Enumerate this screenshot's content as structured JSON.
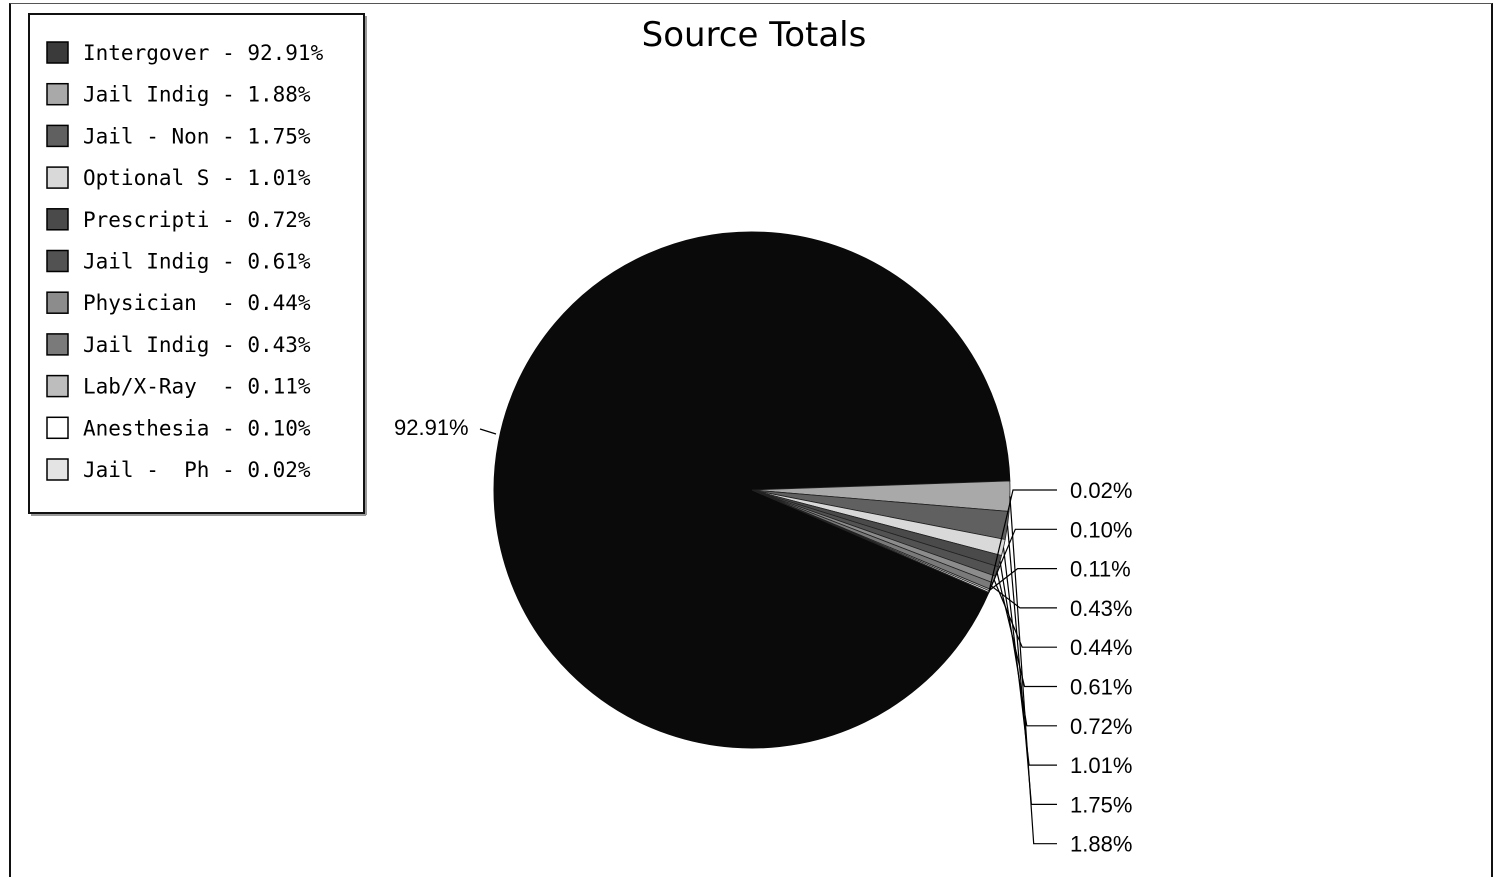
{
  "chart_data": {
    "type": "pie",
    "title": "Source Totals",
    "legend_position": "top-left",
    "slices": [
      {
        "legend": "Intergover - 92.91%",
        "label": "92.91%",
        "value": 92.91,
        "color": "#3a3a3a"
      },
      {
        "legend": "Jail Indig - 1.88%",
        "label": "1.88%",
        "value": 1.88,
        "color": "#a9a9a9"
      },
      {
        "legend": "Jail - Non - 1.75%",
        "label": "1.75%",
        "value": 1.75,
        "color": "#606060"
      },
      {
        "legend": "Optional S - 1.01%",
        "label": "1.01%",
        "value": 1.01,
        "color": "#d9d9d9"
      },
      {
        "legend": "Prescripti - 0.72%",
        "label": "0.72%",
        "value": 0.72,
        "color": "#4a4a4a"
      },
      {
        "legend": "Jail Indig - 0.61%",
        "label": "0.61%",
        "value": 0.61,
        "color": "#525252"
      },
      {
        "legend": "Physician  - 0.44%",
        "label": "0.44%",
        "value": 0.44,
        "color": "#8c8c8c"
      },
      {
        "legend": "Jail Indig - 0.43%",
        "label": "0.43%",
        "value": 0.43,
        "color": "#7a7a7a"
      },
      {
        "legend": "Lab/X-Ray  - 0.11%",
        "label": "0.11%",
        "value": 0.11,
        "color": "#bdbdbd"
      },
      {
        "legend": "Anesthesia - 0.10%",
        "label": "0.10%",
        "value": 0.1,
        "color": "#ffffff"
      },
      {
        "legend": "Jail -  Ph - 0.02%",
        "label": "0.02%",
        "value": 0.02,
        "color": "#e4e4e4"
      }
    ]
  }
}
